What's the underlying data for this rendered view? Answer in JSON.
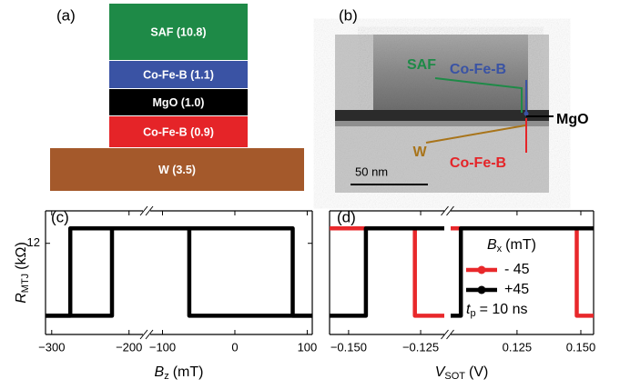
{
  "panel_a": {
    "label": "(a)",
    "layers": [
      {
        "label": "SAF (10.8)",
        "color": "#1e8a47"
      },
      {
        "label": "Co-Fe-B (1.1)",
        "color": "#3a53a4"
      },
      {
        "label": "MgO (1.0)",
        "color": "#000000"
      },
      {
        "label": "Co-Fe-B (0.9)",
        "color": "#e52428"
      },
      {
        "label": "W (3.5)",
        "color": "#a4592b"
      }
    ]
  },
  "panel_b": {
    "label": "(b)",
    "annotations": [
      {
        "text": "SAF",
        "color": "#1e8a47"
      },
      {
        "text": "Co-Fe-B",
        "color": "#3a53a4"
      },
      {
        "text": "MgO",
        "color": "#000000"
      },
      {
        "text": "W",
        "color": "#a8741a"
      },
      {
        "text": "Co-Fe-B",
        "color": "#e52428"
      }
    ],
    "scale_bar": "50 nm"
  },
  "chart_data": [
    {
      "type": "line",
      "panel_label": "(c)",
      "ylabel": {
        "symbol": "R",
        "subscript": "MTJ",
        "unit": "(kΩ)"
      },
      "xlabel": {
        "symbol": "B",
        "subscript": "z",
        "unit": "(mT)"
      },
      "ylim": [
        4.7,
        14.6
      ],
      "yticks": [
        12
      ],
      "x_segments": [
        {
          "xlim": [
            -308,
            -182
          ],
          "xticks": [
            {
              "value": -300,
              "label": "−300"
            },
            {
              "value": -200,
              "label": "−200"
            }
          ]
        },
        {
          "xlim": [
            -117,
            107
          ],
          "xticks": [
            {
              "value": -100,
              "label": "−100"
            },
            0,
            100
          ]
        }
      ],
      "series": [
        {
          "color": "#000000",
          "x": [
            107,
            80,
            80,
            -276,
            -276,
            -308
          ],
          "values": [
            6.2,
            6.2,
            13.2,
            13.2,
            6.2,
            6.2
          ]
        },
        {
          "color": "#000000",
          "x": [
            -308,
            -222,
            -222,
            -63,
            -63,
            107
          ],
          "values": [
            6.2,
            6.2,
            13.2,
            13.2,
            6.2,
            6.2
          ]
        }
      ]
    },
    {
      "type": "line",
      "panel_label": "(d)",
      "xlabel": {
        "symbol": "V",
        "subscript": "SOT",
        "unit": "(V)"
      },
      "ylim": [
        4.7,
        14.6
      ],
      "x_segments": [
        {
          "xlim": [
            -0.1566,
            -0.1168
          ],
          "xticks": [
            {
              "value": -0.15,
              "label": "−0.150"
            },
            {
              "value": -0.125,
              "label": "−0.125"
            }
          ]
        },
        {
          "xlim": [
            0.099,
            0.155
          ],
          "xticks": [
            0.125,
            {
              "value": 0.15,
              "label": "0.150"
            }
          ]
        }
      ],
      "legend_title": {
        "symbol": "B",
        "subscript": "x",
        "unit": "(mT)"
      },
      "annotation": {
        "symbol": "t",
        "subscript": "p",
        "rest": "= 10 ns"
      },
      "series": [
        {
          "name": "- 45",
          "color": "#e8282b",
          "x": [
            -0.1566,
            -0.127,
            -0.127,
            -0.1168,
            null,
            0.099,
            0.1484,
            0.1484,
            0.155
          ],
          "values": [
            13.2,
            13.2,
            6.2,
            6.2,
            null,
            13.2,
            13.2,
            6.2,
            6.2
          ]
        },
        {
          "name": "+45",
          "color": "#000000",
          "x": [
            -0.1566,
            -0.144,
            -0.144,
            -0.1168,
            null,
            0.099,
            0.103,
            0.103,
            0.155
          ],
          "values": [
            6.2,
            6.2,
            13.2,
            13.2,
            null,
            6.2,
            6.2,
            13.2,
            13.2
          ]
        }
      ]
    }
  ]
}
